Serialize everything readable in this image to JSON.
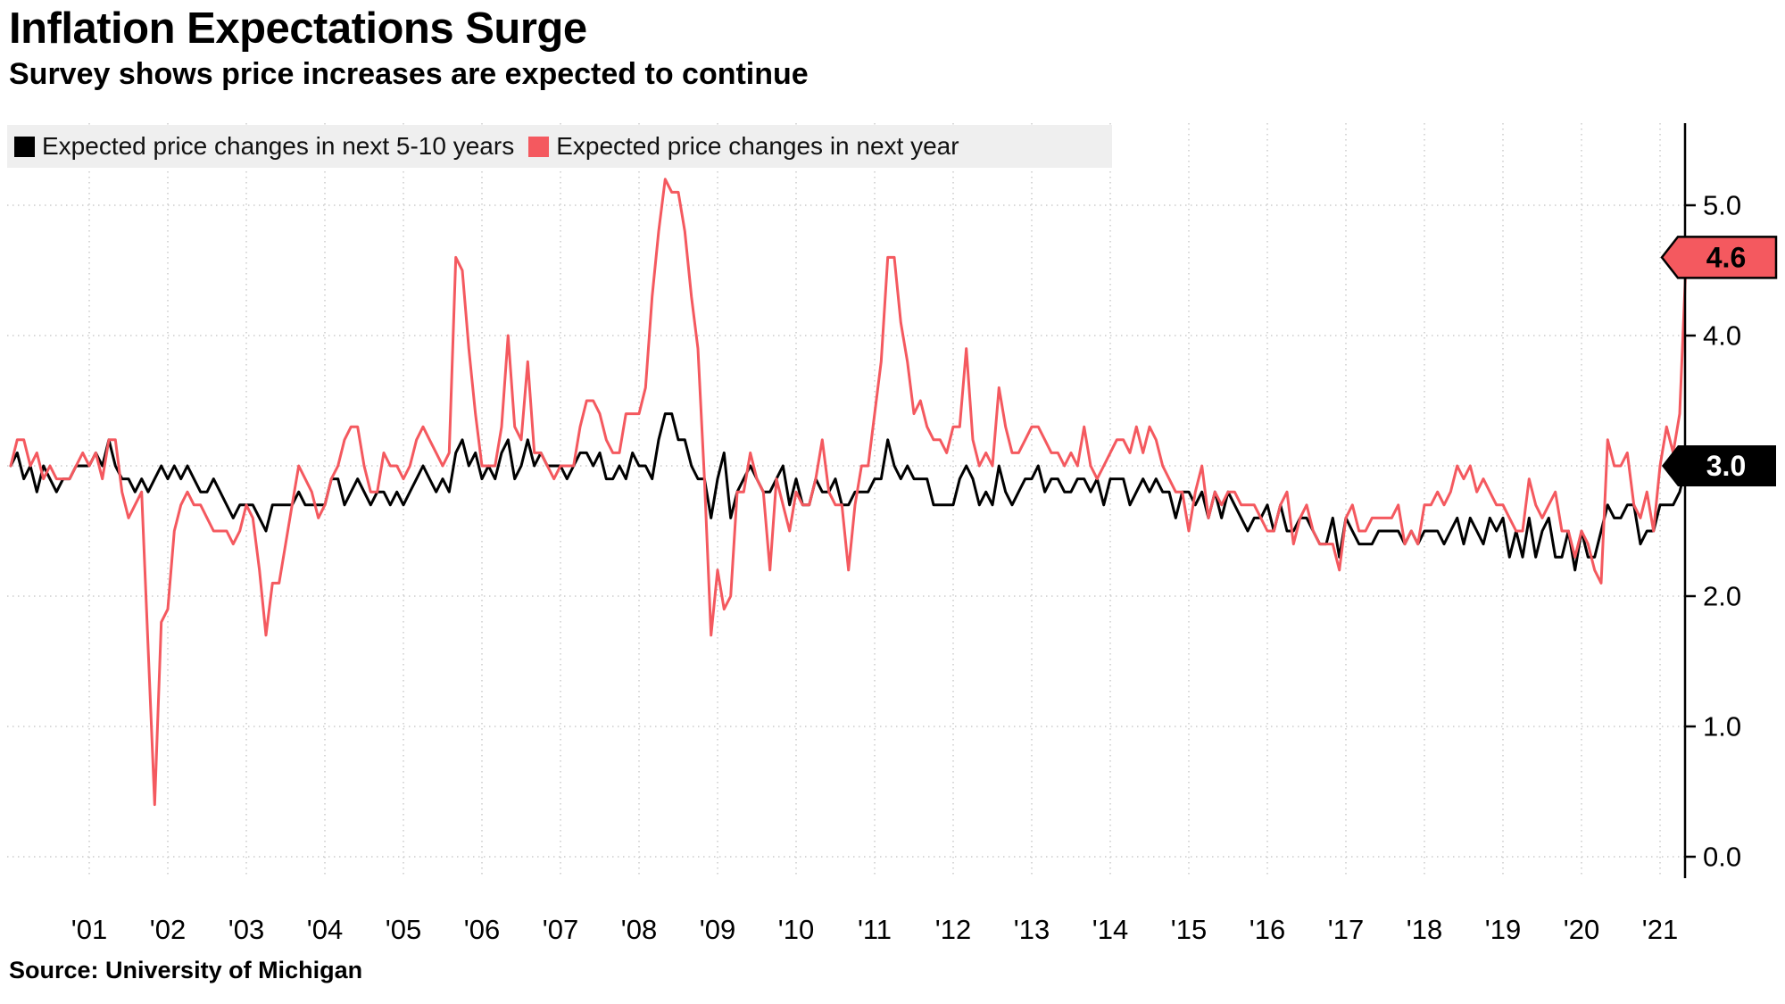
{
  "header": {
    "title": "Inflation Expectations Surge",
    "subtitle": "Survey shows price increases are expected to continue"
  },
  "legend": [
    {
      "label": "Expected price changes in next 5-10 years",
      "color": "#000000"
    },
    {
      "label": "Expected price changes in next year",
      "color": "#f4595f"
    }
  ],
  "source": "Source: University of Michigan",
  "chart_data": {
    "type": "line",
    "title": "Inflation Expectations Surge",
    "subtitle": "Survey shows price increases are expected to continue",
    "xlabel": "",
    "ylabel": "",
    "grid": true,
    "legend_position": "top-left",
    "y_axis_side": "right",
    "ylim": [
      0,
      5.6
    ],
    "x_start_year": 2000,
    "points_per_year": 12,
    "x_tick_years": [
      2001,
      2002,
      2003,
      2004,
      2005,
      2006,
      2007,
      2008,
      2009,
      2010,
      2011,
      2012,
      2013,
      2014,
      2015,
      2016,
      2017,
      2018,
      2019,
      2020,
      2021
    ],
    "x_tick_labels": [
      "'01",
      "'02",
      "'03",
      "'04",
      "'05",
      "'06",
      "'07",
      "'08",
      "'09",
      "'10",
      "'11",
      "'12",
      "'13",
      "'14",
      "'15",
      "'16",
      "'17",
      "'18",
      "'19",
      "'20",
      "'21"
    ],
    "y_ticks": [
      0,
      1,
      2,
      3,
      4,
      5
    ],
    "y_tick_labels": [
      "0.0",
      "1.0",
      "2.0",
      "3.0",
      "4.0",
      "5.0"
    ],
    "series": [
      {
        "name": "Expected price changes in next 5-10 years",
        "color": "#000000",
        "values": [
          3.0,
          3.1,
          2.9,
          3.0,
          2.8,
          3.0,
          2.9,
          2.8,
          2.9,
          2.9,
          3.0,
          3.0,
          3.0,
          3.1,
          3.0,
          3.2,
          3.0,
          2.9,
          2.9,
          2.8,
          2.9,
          2.8,
          2.9,
          3.0,
          2.9,
          3.0,
          2.9,
          3.0,
          2.9,
          2.8,
          2.8,
          2.9,
          2.8,
          2.7,
          2.6,
          2.7,
          2.7,
          2.7,
          2.6,
          2.5,
          2.7,
          2.7,
          2.7,
          2.7,
          2.8,
          2.7,
          2.7,
          2.7,
          2.7,
          2.9,
          2.9,
          2.7,
          2.8,
          2.9,
          2.8,
          2.7,
          2.8,
          2.8,
          2.7,
          2.8,
          2.7,
          2.8,
          2.9,
          3.0,
          2.9,
          2.8,
          2.9,
          2.8,
          3.1,
          3.2,
          3.0,
          3.1,
          2.9,
          3.0,
          2.9,
          3.1,
          3.2,
          2.9,
          3.0,
          3.2,
          3.0,
          3.1,
          3.0,
          3.0,
          3.0,
          2.9,
          3.0,
          3.1,
          3.1,
          3.0,
          3.1,
          2.9,
          2.9,
          3.0,
          2.9,
          3.1,
          3.0,
          3.0,
          2.9,
          3.2,
          3.4,
          3.4,
          3.2,
          3.2,
          3.0,
          2.9,
          2.9,
          2.6,
          2.9,
          3.1,
          2.6,
          2.8,
          2.9,
          3.0,
          2.9,
          2.8,
          2.8,
          2.9,
          3.0,
          2.7,
          2.9,
          2.7,
          2.7,
          2.9,
          2.8,
          2.8,
          2.9,
          2.7,
          2.7,
          2.8,
          2.8,
          2.8,
          2.9,
          2.9,
          3.2,
          3.0,
          2.9,
          3.0,
          2.9,
          2.9,
          2.9,
          2.7,
          2.7,
          2.7,
          2.7,
          2.9,
          3.0,
          2.9,
          2.7,
          2.8,
          2.7,
          3.0,
          2.8,
          2.7,
          2.8,
          2.9,
          2.9,
          3.0,
          2.8,
          2.9,
          2.9,
          2.8,
          2.8,
          2.9,
          2.9,
          2.8,
          2.9,
          2.7,
          2.9,
          2.9,
          2.9,
          2.7,
          2.8,
          2.9,
          2.8,
          2.9,
          2.8,
          2.8,
          2.6,
          2.8,
          2.8,
          2.7,
          2.8,
          2.6,
          2.8,
          2.6,
          2.8,
          2.7,
          2.6,
          2.5,
          2.6,
          2.6,
          2.7,
          2.5,
          2.7,
          2.5,
          2.5,
          2.6,
          2.6,
          2.5,
          2.4,
          2.4,
          2.6,
          2.3,
          2.6,
          2.5,
          2.4,
          2.4,
          2.4,
          2.5,
          2.5,
          2.5,
          2.5,
          2.4,
          2.5,
          2.4,
          2.5,
          2.5,
          2.5,
          2.4,
          2.5,
          2.6,
          2.4,
          2.6,
          2.5,
          2.4,
          2.6,
          2.5,
          2.6,
          2.3,
          2.5,
          2.3,
          2.6,
          2.3,
          2.5,
          2.6,
          2.3,
          2.3,
          2.5,
          2.2,
          2.5,
          2.3,
          2.3,
          2.5,
          2.7,
          2.6,
          2.6,
          2.7,
          2.7,
          2.4,
          2.5,
          2.5,
          2.7,
          2.7,
          2.7,
          2.8,
          3.0
        ]
      },
      {
        "name": "Expected price changes in next year",
        "color": "#f4595f",
        "values": [
          3.0,
          3.2,
          3.2,
          3.0,
          3.1,
          2.9,
          3.0,
          2.9,
          2.9,
          2.9,
          3.0,
          3.1,
          3.0,
          3.1,
          2.9,
          3.2,
          3.2,
          2.8,
          2.6,
          2.7,
          2.8,
          1.6,
          0.4,
          1.8,
          1.9,
          2.5,
          2.7,
          2.8,
          2.7,
          2.7,
          2.6,
          2.5,
          2.5,
          2.5,
          2.4,
          2.5,
          2.7,
          2.6,
          2.2,
          1.7,
          2.1,
          2.1,
          2.4,
          2.7,
          3.0,
          2.9,
          2.8,
          2.6,
          2.7,
          2.9,
          3.0,
          3.2,
          3.3,
          3.3,
          3.0,
          2.8,
          2.8,
          3.1,
          3.0,
          3.0,
          2.9,
          3.0,
          3.2,
          3.3,
          3.2,
          3.1,
          3.0,
          3.1,
          4.6,
          4.5,
          3.9,
          3.4,
          3.0,
          3.0,
          3.0,
          3.3,
          4.0,
          3.3,
          3.2,
          3.8,
          3.1,
          3.1,
          3.0,
          2.9,
          3.0,
          3.0,
          3.0,
          3.3,
          3.5,
          3.5,
          3.4,
          3.2,
          3.1,
          3.1,
          3.4,
          3.4,
          3.4,
          3.6,
          4.3,
          4.8,
          5.2,
          5.1,
          5.1,
          4.8,
          4.3,
          3.9,
          2.9,
          1.7,
          2.2,
          1.9,
          2.0,
          2.8,
          2.8,
          3.1,
          2.9,
          2.8,
          2.2,
          2.9,
          2.7,
          2.5,
          2.8,
          2.7,
          2.7,
          2.9,
          3.2,
          2.8,
          2.7,
          2.7,
          2.2,
          2.7,
          3.0,
          3.0,
          3.4,
          3.8,
          4.6,
          4.6,
          4.1,
          3.8,
          3.4,
          3.5,
          3.3,
          3.2,
          3.2,
          3.1,
          3.3,
          3.3,
          3.9,
          3.2,
          3.0,
          3.1,
          3.0,
          3.6,
          3.3,
          3.1,
          3.1,
          3.2,
          3.3,
          3.3,
          3.2,
          3.1,
          3.1,
          3.0,
          3.1,
          3.0,
          3.3,
          3.0,
          2.9,
          3.0,
          3.1,
          3.2,
          3.2,
          3.1,
          3.3,
          3.1,
          3.3,
          3.2,
          3.0,
          2.9,
          2.8,
          2.8,
          2.5,
          2.8,
          3.0,
          2.6,
          2.8,
          2.7,
          2.8,
          2.8,
          2.7,
          2.7,
          2.7,
          2.6,
          2.5,
          2.5,
          2.7,
          2.8,
          2.4,
          2.6,
          2.7,
          2.5,
          2.4,
          2.4,
          2.4,
          2.2,
          2.6,
          2.7,
          2.5,
          2.5,
          2.6,
          2.6,
          2.6,
          2.6,
          2.7,
          2.4,
          2.5,
          2.4,
          2.7,
          2.7,
          2.8,
          2.7,
          2.8,
          3.0,
          2.9,
          3.0,
          2.8,
          2.9,
          2.8,
          2.7,
          2.7,
          2.6,
          2.5,
          2.5,
          2.9,
          2.7,
          2.6,
          2.7,
          2.8,
          2.5,
          2.5,
          2.3,
          2.5,
          2.4,
          2.2,
          2.1,
          3.2,
          3.0,
          3.0,
          3.1,
          2.7,
          2.6,
          2.8,
          2.5,
          3.0,
          3.3,
          3.1,
          3.4,
          4.6
        ]
      }
    ],
    "end_labels": [
      {
        "value": 4.6,
        "label": "4.6",
        "fill": "#f4595f",
        "border": "#000000",
        "text_color": "#000000"
      },
      {
        "value": 3.0,
        "label": "3.0",
        "fill": "#000000",
        "border": "none",
        "text_color": "#ffffff"
      }
    ]
  }
}
